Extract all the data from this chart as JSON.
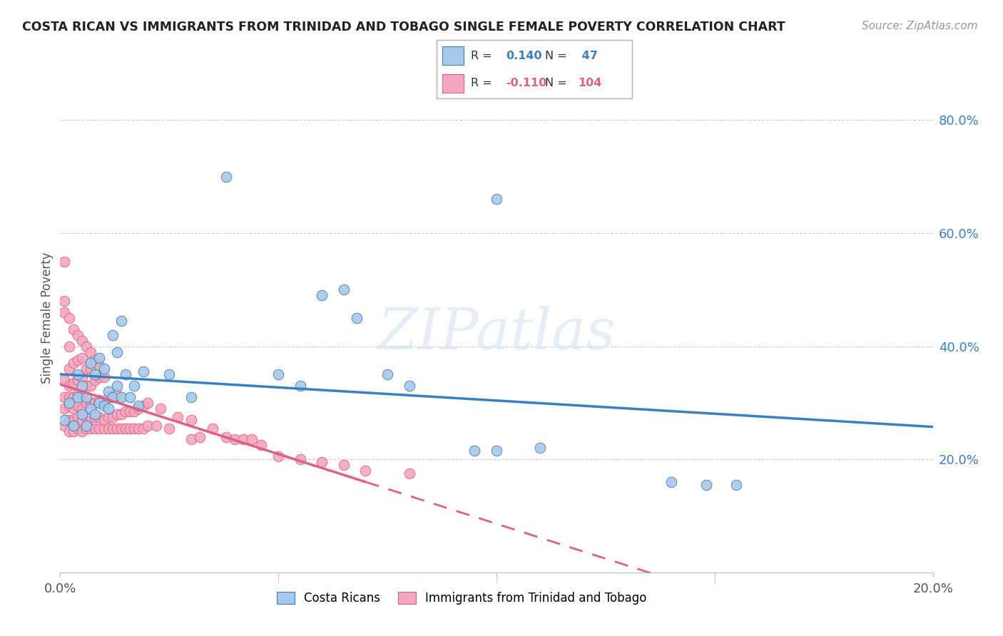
{
  "title": "COSTA RICAN VS IMMIGRANTS FROM TRINIDAD AND TOBAGO SINGLE FEMALE POVERTY CORRELATION CHART",
  "source": "Source: ZipAtlas.com",
  "ylabel": "Single Female Poverty",
  "xlim": [
    0.0,
    0.2
  ],
  "ylim": [
    0.0,
    0.9
  ],
  "blue_R": 0.14,
  "blue_N": 47,
  "pink_R": -0.11,
  "pink_N": 104,
  "blue_color": "#a8c8e8",
  "pink_color": "#f4a8c0",
  "blue_line_color": "#3a7fc1",
  "pink_line_color": "#e06080",
  "watermark": "ZIPatlas",
  "blue_x": [
    0.001,
    0.002,
    0.003,
    0.004,
    0.004,
    0.005,
    0.005,
    0.006,
    0.006,
    0.007,
    0.007,
    0.008,
    0.008,
    0.009,
    0.009,
    0.01,
    0.01,
    0.011,
    0.011,
    0.012,
    0.012,
    0.013,
    0.013,
    0.014,
    0.014,
    0.015,
    0.016,
    0.017,
    0.018,
    0.019,
    0.025,
    0.03,
    0.038,
    0.05,
    0.055,
    0.06,
    0.065,
    0.068,
    0.075,
    0.08,
    0.095,
    0.1,
    0.1,
    0.11,
    0.14,
    0.148,
    0.155
  ],
  "blue_y": [
    0.27,
    0.3,
    0.26,
    0.31,
    0.35,
    0.28,
    0.33,
    0.26,
    0.31,
    0.29,
    0.37,
    0.28,
    0.35,
    0.3,
    0.38,
    0.295,
    0.36,
    0.29,
    0.32,
    0.31,
    0.42,
    0.33,
    0.39,
    0.31,
    0.445,
    0.35,
    0.31,
    0.33,
    0.295,
    0.355,
    0.35,
    0.31,
    0.7,
    0.35,
    0.33,
    0.49,
    0.5,
    0.45,
    0.35,
    0.33,
    0.215,
    0.215,
    0.66,
    0.22,
    0.16,
    0.155,
    0.155
  ],
  "pink_x": [
    0.001,
    0.001,
    0.001,
    0.001,
    0.001,
    0.002,
    0.002,
    0.002,
    0.002,
    0.002,
    0.002,
    0.002,
    0.003,
    0.003,
    0.003,
    0.003,
    0.003,
    0.003,
    0.004,
    0.004,
    0.004,
    0.004,
    0.004,
    0.004,
    0.005,
    0.005,
    0.005,
    0.005,
    0.005,
    0.005,
    0.006,
    0.006,
    0.006,
    0.006,
    0.006,
    0.007,
    0.007,
    0.007,
    0.007,
    0.007,
    0.008,
    0.008,
    0.008,
    0.008,
    0.009,
    0.009,
    0.009,
    0.009,
    0.01,
    0.01,
    0.01,
    0.01,
    0.011,
    0.011,
    0.011,
    0.012,
    0.012,
    0.012,
    0.013,
    0.013,
    0.013,
    0.014,
    0.014,
    0.015,
    0.015,
    0.016,
    0.016,
    0.017,
    0.017,
    0.018,
    0.018,
    0.019,
    0.019,
    0.02,
    0.02,
    0.022,
    0.023,
    0.025,
    0.027,
    0.03,
    0.03,
    0.032,
    0.035,
    0.038,
    0.04,
    0.042,
    0.044,
    0.046,
    0.05,
    0.055,
    0.06,
    0.065,
    0.07,
    0.08,
    0.001,
    0.001,
    0.002,
    0.003,
    0.004,
    0.005,
    0.006,
    0.007,
    0.008,
    0.009
  ],
  "pink_y": [
    0.26,
    0.29,
    0.31,
    0.34,
    0.55,
    0.25,
    0.27,
    0.295,
    0.31,
    0.33,
    0.36,
    0.4,
    0.25,
    0.27,
    0.29,
    0.31,
    0.335,
    0.37,
    0.255,
    0.275,
    0.295,
    0.315,
    0.34,
    0.375,
    0.25,
    0.27,
    0.29,
    0.315,
    0.345,
    0.38,
    0.255,
    0.275,
    0.3,
    0.33,
    0.36,
    0.255,
    0.275,
    0.3,
    0.33,
    0.36,
    0.255,
    0.275,
    0.3,
    0.34,
    0.255,
    0.275,
    0.305,
    0.345,
    0.255,
    0.27,
    0.3,
    0.345,
    0.255,
    0.275,
    0.31,
    0.255,
    0.275,
    0.31,
    0.255,
    0.28,
    0.315,
    0.255,
    0.28,
    0.255,
    0.285,
    0.255,
    0.285,
    0.255,
    0.285,
    0.255,
    0.29,
    0.255,
    0.295,
    0.26,
    0.3,
    0.26,
    0.29,
    0.255,
    0.275,
    0.235,
    0.27,
    0.24,
    0.255,
    0.24,
    0.235,
    0.235,
    0.235,
    0.225,
    0.205,
    0.2,
    0.195,
    0.19,
    0.18,
    0.175,
    0.46,
    0.48,
    0.45,
    0.43,
    0.42,
    0.41,
    0.4,
    0.39,
    0.375,
    0.365
  ]
}
